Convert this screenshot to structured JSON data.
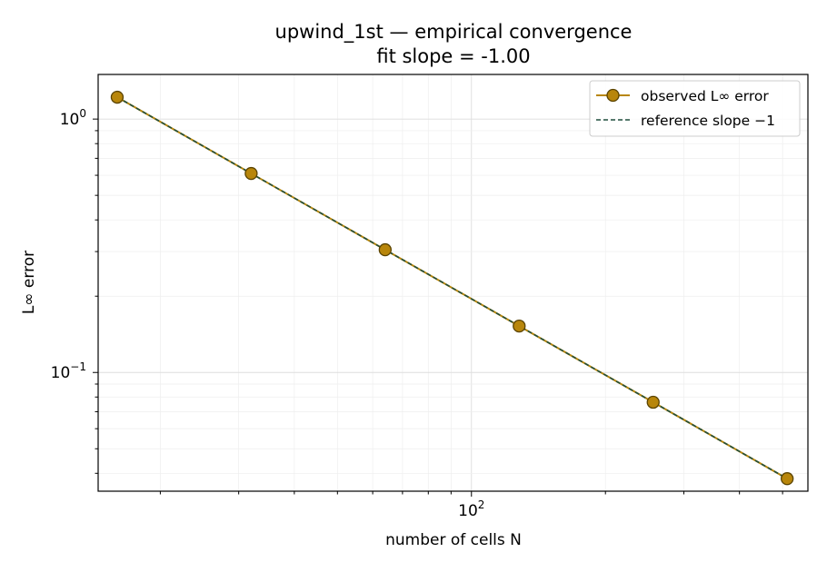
{
  "chart_data": {
    "type": "line",
    "title": "upwind_1st — empirical convergence",
    "subtitle": "fit slope = -1.00",
    "xlabel": "number of cells N",
    "ylabel": "L∞ error",
    "xscale": "log",
    "yscale": "log",
    "xlim": [
      14.5,
      570
    ],
    "ylim": [
      0.034,
      1.5
    ],
    "grid": true,
    "legend_position": "top-right",
    "x_ticks": [
      {
        "value": 100,
        "base": "10",
        "exp": "2"
      }
    ],
    "y_ticks": [
      {
        "value": 1,
        "base": "10",
        "exp": "0"
      },
      {
        "value": 0.1,
        "base": "10",
        "exp": "−1"
      }
    ],
    "series": [
      {
        "name": "observed L∞ error",
        "style": "line-marker",
        "color": "#b8860b",
        "marker_edge": "#5a4300",
        "x": [
          16,
          32,
          64,
          128,
          256,
          512
        ],
        "y": [
          1.22,
          0.61,
          0.305,
          0.1525,
          0.0763,
          0.0381
        ]
      },
      {
        "name": "reference slope −1",
        "style": "dashed",
        "color": "#1f4e3d",
        "x": [
          16,
          32,
          64,
          128,
          256,
          512
        ],
        "y": [
          1.22,
          0.61,
          0.305,
          0.1525,
          0.0763,
          0.0381
        ]
      }
    ]
  }
}
